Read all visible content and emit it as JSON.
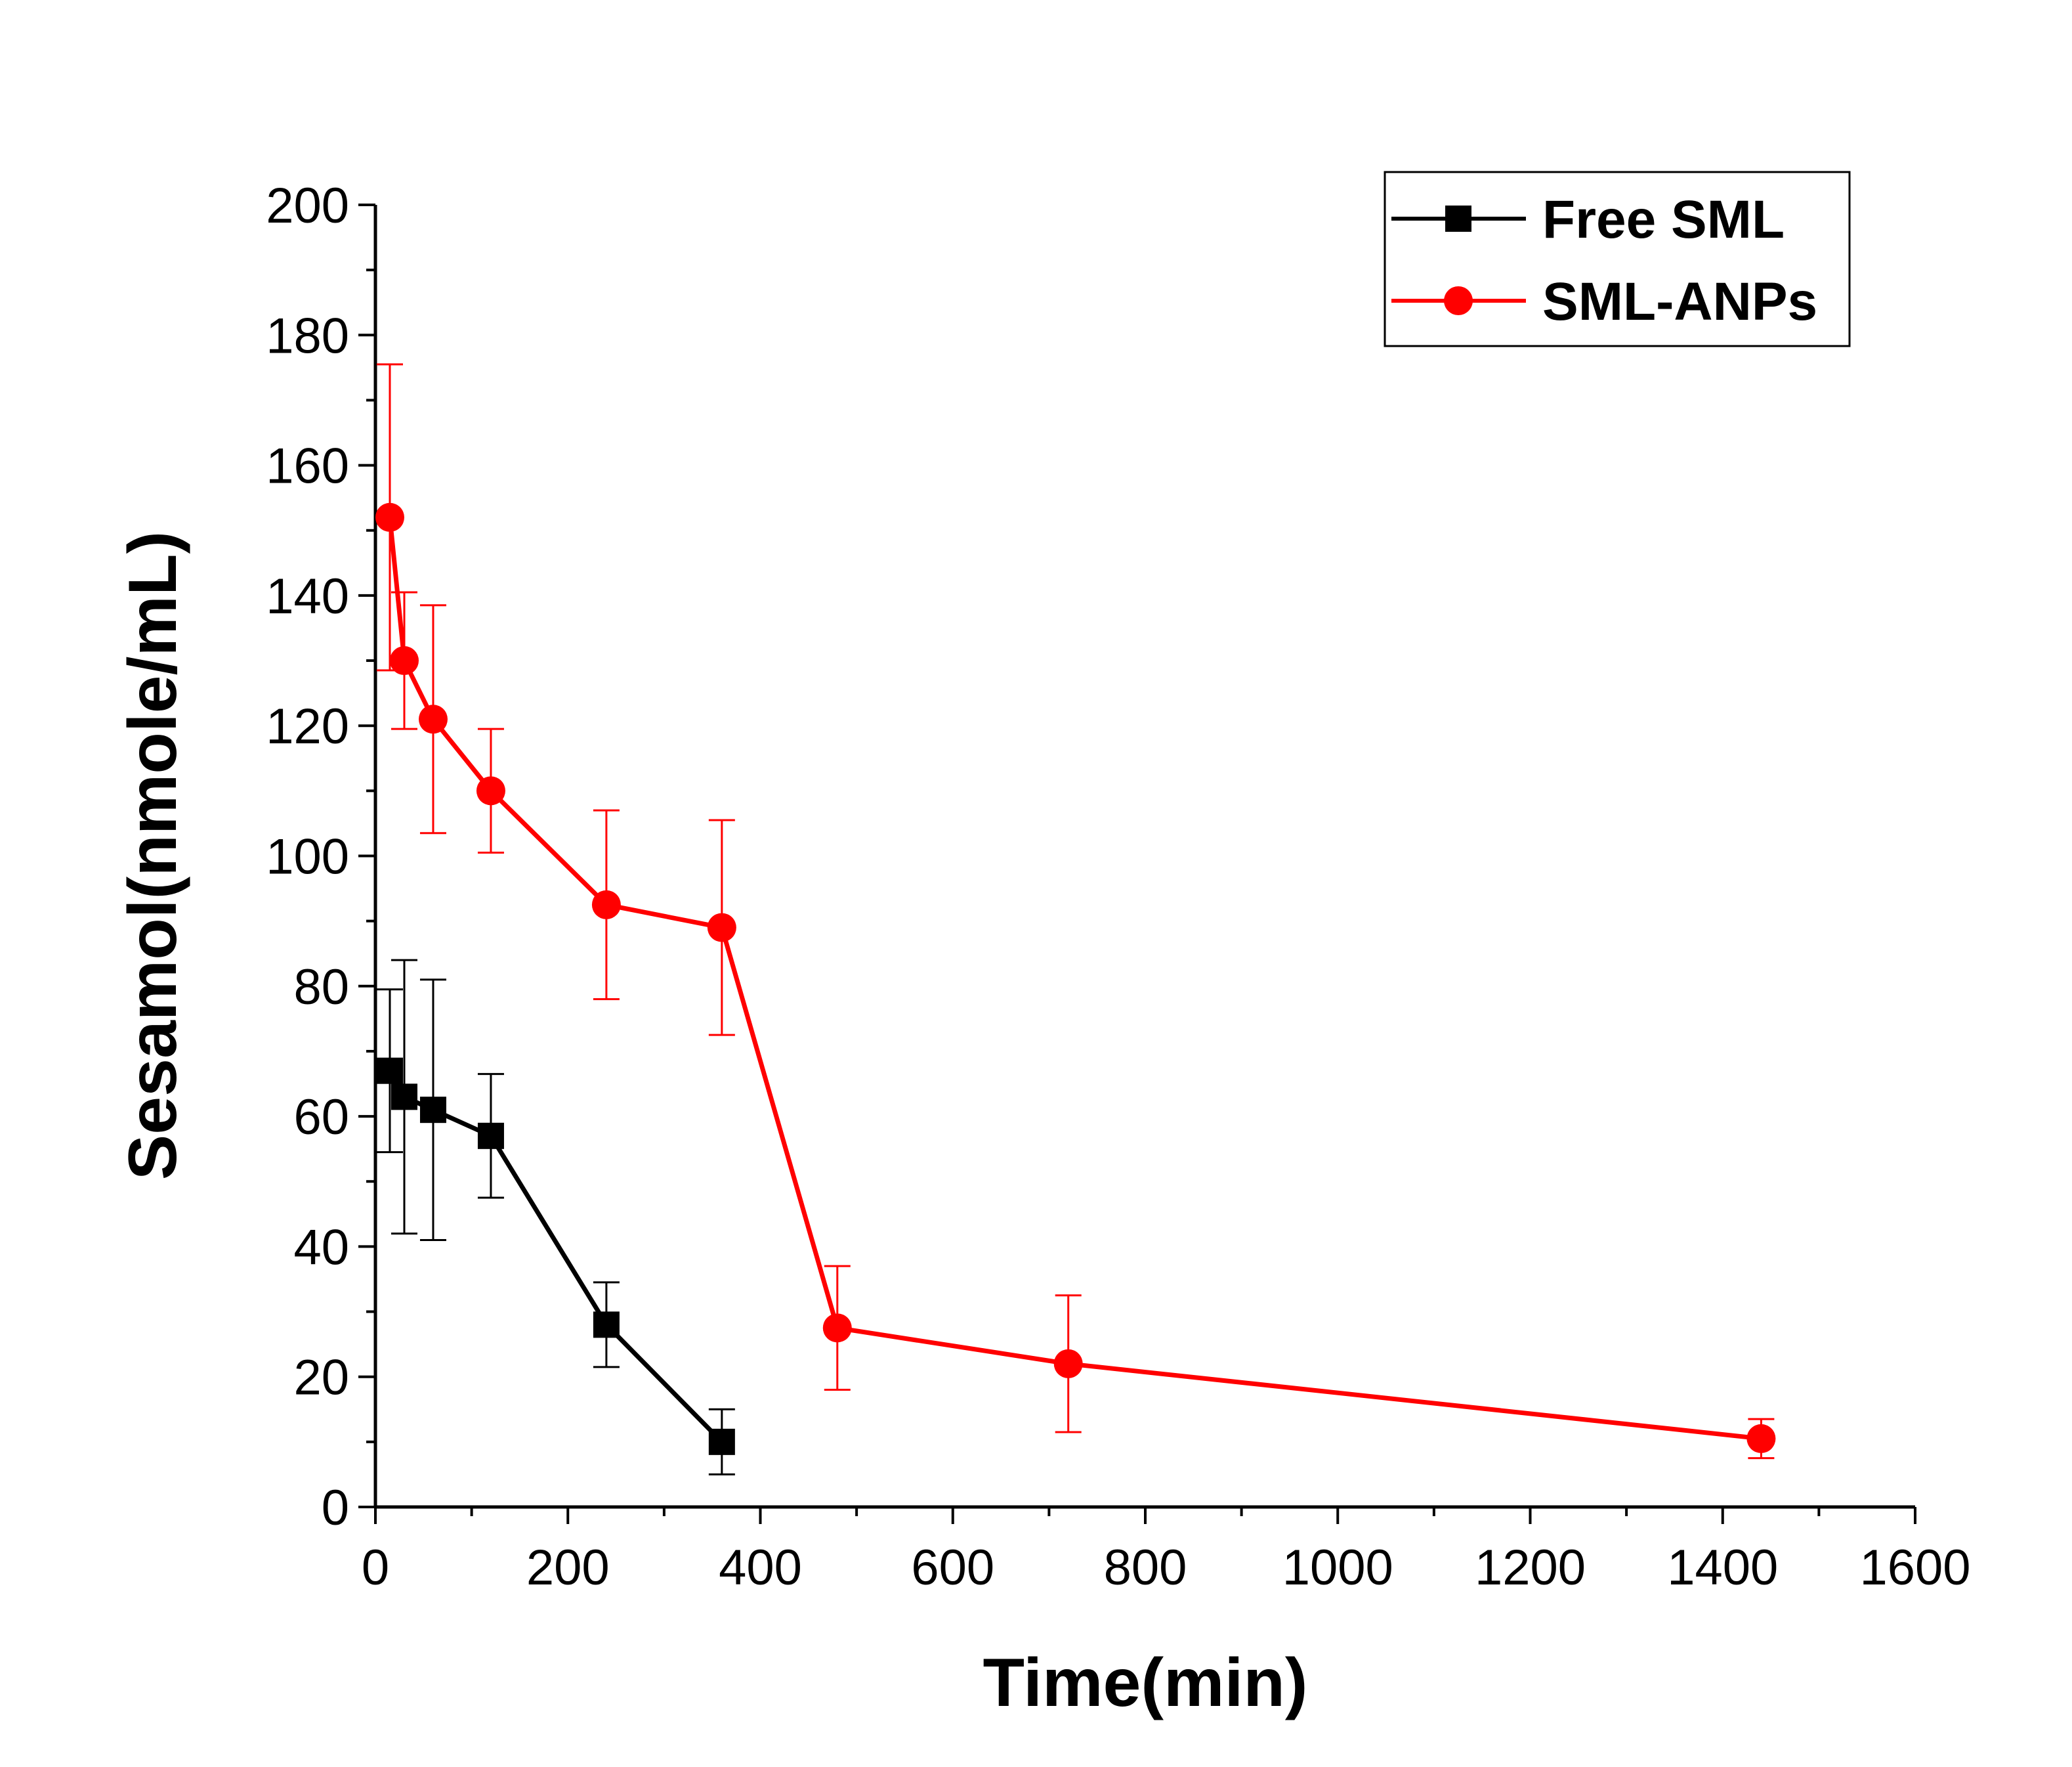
{
  "chart_data": {
    "type": "line",
    "title": "",
    "xlabel": "Time(min)",
    "ylabel": "Sesamol(nmole/mL)",
    "xlim": [
      0,
      1600
    ],
    "ylim": [
      0,
      200
    ],
    "xticks": [
      0,
      200,
      400,
      600,
      800,
      1000,
      1200,
      1400,
      1600
    ],
    "yticks": [
      0,
      20,
      40,
      60,
      80,
      100,
      120,
      140,
      160,
      180,
      200
    ],
    "legend_position": "top-right",
    "series": [
      {
        "name": "Free SML",
        "color": "#000000",
        "marker": "square",
        "x": [
          15,
          30,
          60,
          120,
          240,
          360
        ],
        "y": [
          67,
          63,
          61,
          57,
          28,
          10
        ],
        "err": [
          12.5,
          21,
          20,
          9.5,
          6.5,
          5
        ]
      },
      {
        "name": "SML-ANPs",
        "color": "#ff0000",
        "marker": "circle",
        "x": [
          15,
          30,
          60,
          120,
          240,
          360,
          480,
          720,
          1440
        ],
        "y": [
          152,
          130,
          121,
          110,
          92.5,
          89,
          27.5,
          22,
          10.5
        ],
        "err": [
          23.5,
          10.5,
          17.5,
          9.5,
          14.5,
          16.5,
          9.5,
          10.5,
          3
        ]
      }
    ]
  }
}
